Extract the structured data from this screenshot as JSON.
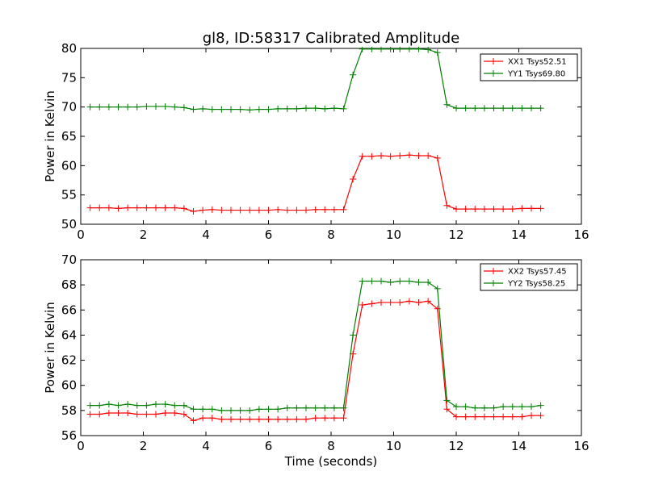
{
  "chart_data": [
    {
      "type": "line",
      "title": "gl8, ID:58317 Calibrated Amplitude",
      "xlabel": "",
      "ylabel": "Power in Kelvin",
      "xlim": [
        0,
        16
      ],
      "ylim": [
        50,
        80
      ],
      "xticks": [
        0,
        2,
        4,
        6,
        8,
        10,
        12,
        14,
        16
      ],
      "yticks": [
        50,
        55,
        60,
        65,
        70,
        75,
        80
      ],
      "grid": false,
      "legend_position": "top-right",
      "x": [
        0.3,
        0.6,
        0.9,
        1.2,
        1.5,
        1.8,
        2.1,
        2.4,
        2.7,
        3.0,
        3.3,
        3.6,
        3.9,
        4.2,
        4.5,
        4.8,
        5.1,
        5.4,
        5.7,
        6.0,
        6.3,
        6.6,
        6.9,
        7.2,
        7.5,
        7.8,
        8.1,
        8.4,
        8.7,
        9.0,
        9.3,
        9.6,
        9.9,
        10.2,
        10.5,
        10.8,
        11.1,
        11.4,
        11.7,
        12.0,
        12.3,
        12.6,
        12.9,
        13.2,
        13.5,
        13.8,
        14.1,
        14.4,
        14.7
      ],
      "series": [
        {
          "name": "XX1 Tsys52.51",
          "color": "#ff0000",
          "values": [
            52.8,
            52.8,
            52.8,
            52.7,
            52.8,
            52.8,
            52.8,
            52.8,
            52.8,
            52.8,
            52.7,
            52.2,
            52.4,
            52.5,
            52.4,
            52.4,
            52.4,
            52.4,
            52.4,
            52.4,
            52.5,
            52.4,
            52.4,
            52.4,
            52.5,
            52.5,
            52.5,
            52.5,
            57.7,
            61.6,
            61.6,
            61.7,
            61.6,
            61.7,
            61.8,
            61.7,
            61.7,
            61.3,
            53.2,
            52.6,
            52.6,
            52.6,
            52.6,
            52.6,
            52.6,
            52.6,
            52.7,
            52.7,
            52.7
          ]
        },
        {
          "name": "YY1 Tsys69.80",
          "color": "#008000",
          "values": [
            70.0,
            70.0,
            70.0,
            70.0,
            70.0,
            70.0,
            70.1,
            70.1,
            70.1,
            70.0,
            69.9,
            69.6,
            69.7,
            69.6,
            69.6,
            69.6,
            69.6,
            69.5,
            69.6,
            69.6,
            69.7,
            69.7,
            69.7,
            69.8,
            69.8,
            69.7,
            69.8,
            69.7,
            75.5,
            79.9,
            79.9,
            79.9,
            79.9,
            79.9,
            79.9,
            79.9,
            79.8,
            79.3,
            70.4,
            69.8,
            69.8,
            69.8,
            69.8,
            69.8,
            69.8,
            69.8,
            69.8,
            69.8,
            69.8
          ]
        }
      ]
    },
    {
      "type": "line",
      "title": "",
      "xlabel": "Time (seconds)",
      "ylabel": "Power in Kelvin",
      "xlim": [
        0,
        16
      ],
      "ylim": [
        56,
        70
      ],
      "xticks": [
        0,
        2,
        4,
        6,
        8,
        10,
        12,
        14,
        16
      ],
      "yticks": [
        56,
        58,
        60,
        62,
        64,
        66,
        68,
        70
      ],
      "grid": false,
      "legend_position": "top-right",
      "x": [
        0.3,
        0.6,
        0.9,
        1.2,
        1.5,
        1.8,
        2.1,
        2.4,
        2.7,
        3.0,
        3.3,
        3.6,
        3.9,
        4.2,
        4.5,
        4.8,
        5.1,
        5.4,
        5.7,
        6.0,
        6.3,
        6.6,
        6.9,
        7.2,
        7.5,
        7.8,
        8.1,
        8.4,
        8.7,
        9.0,
        9.3,
        9.6,
        9.9,
        10.2,
        10.5,
        10.8,
        11.1,
        11.4,
        11.7,
        12.0,
        12.3,
        12.6,
        12.9,
        13.2,
        13.5,
        13.8,
        14.1,
        14.4,
        14.7
      ],
      "series": [
        {
          "name": "XX2 Tsys57.45",
          "color": "#ff0000",
          "values": [
            57.7,
            57.7,
            57.8,
            57.8,
            57.8,
            57.7,
            57.7,
            57.7,
            57.8,
            57.8,
            57.7,
            57.2,
            57.4,
            57.4,
            57.3,
            57.3,
            57.3,
            57.3,
            57.3,
            57.3,
            57.3,
            57.3,
            57.3,
            57.3,
            57.4,
            57.4,
            57.4,
            57.4,
            62.5,
            66.4,
            66.5,
            66.6,
            66.6,
            66.6,
            66.7,
            66.6,
            66.7,
            66.1,
            58.1,
            57.5,
            57.5,
            57.5,
            57.5,
            57.5,
            57.5,
            57.5,
            57.5,
            57.6,
            57.6
          ]
        },
        {
          "name": "YY2 Tsys58.25",
          "color": "#008000",
          "values": [
            58.4,
            58.4,
            58.5,
            58.4,
            58.5,
            58.4,
            58.4,
            58.5,
            58.5,
            58.4,
            58.4,
            58.1,
            58.1,
            58.1,
            58.0,
            58.0,
            58.0,
            58.0,
            58.1,
            58.1,
            58.1,
            58.2,
            58.2,
            58.2,
            58.2,
            58.2,
            58.2,
            58.2,
            64.0,
            68.3,
            68.3,
            68.3,
            68.2,
            68.3,
            68.3,
            68.2,
            68.2,
            67.7,
            58.8,
            58.3,
            58.3,
            58.2,
            58.2,
            58.2,
            58.3,
            58.3,
            58.3,
            58.3,
            58.4
          ]
        }
      ]
    }
  ]
}
